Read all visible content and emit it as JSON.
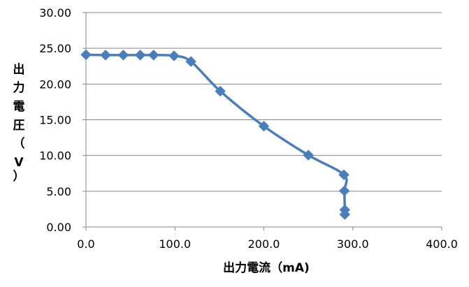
{
  "chart_data": {
    "type": "scatter",
    "title": "",
    "xlabel": "出力電流（mA)",
    "ylabel_chars": [
      "出",
      "力",
      "電",
      "圧",
      "（",
      "V",
      "）"
    ],
    "xlim": [
      0,
      400
    ],
    "ylim": [
      0,
      30
    ],
    "x_ticks": [
      0,
      100,
      200,
      300,
      400
    ],
    "x_tick_labels": [
      "0.0",
      "100.0",
      "200.0",
      "300.0",
      "400.0"
    ],
    "y_ticks": [
      0,
      5,
      10,
      15,
      20,
      25,
      30
    ],
    "y_tick_labels": [
      "0.00",
      "5.00",
      "10.00",
      "15.00",
      "20.00",
      "25.00",
      "30.00"
    ],
    "grid": "horizontal",
    "legend": "none",
    "series": [
      {
        "line_style": "smooth",
        "marker": "diamond",
        "color": "#4a7ebb",
        "x": [
          0,
          22,
          42,
          61,
          76,
          99,
          118,
          151,
          200,
          250,
          290,
          290.5,
          291,
          291
        ],
        "y": [
          24.1,
          24.05,
          24.05,
          24.05,
          24.05,
          23.95,
          23.15,
          19.0,
          14.1,
          10.05,
          7.3,
          5.05,
          2.4,
          1.75
        ]
      }
    ]
  }
}
